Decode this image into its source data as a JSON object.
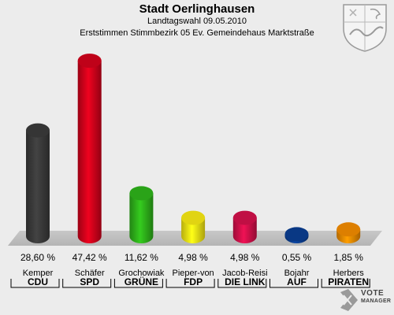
{
  "header": {
    "title": "Stadt Oerlinghausen",
    "subtitle": "Landtagswahl 09.05.2010",
    "subtitle2": "Erststimmen Stimmbezirk 05 Ev. Gemeindehaus Marktstraße"
  },
  "logo": {
    "line1": "VOTE",
    "line2": "MANAGER"
  },
  "chart_data": {
    "type": "bar",
    "ylim": [
      0,
      50
    ],
    "grid": false,
    "categories": [
      "Kemper",
      "Schäfer",
      "Grochowiak",
      "Pieper-von",
      "Jacob-Reisi",
      "Bojahr",
      "Herbers"
    ],
    "parties": [
      "CDU",
      "SPD",
      "GRÜNE",
      "FDP",
      "DIE LINK",
      "AUF",
      "PIRATEN"
    ],
    "values": [
      28.6,
      47.42,
      11.62,
      4.98,
      4.98,
      0.55,
      1.85
    ],
    "value_labels": [
      "28,60 %",
      "47,42 %",
      "11,62 %",
      "4,98 %",
      "4,98 %",
      "0,55 %",
      "1,85 %"
    ],
    "colors": [
      "#3a3a3a",
      "#d0021b",
      "#2eb11a",
      "#f5e614",
      "#d1104a",
      "#0a3d8f",
      "#f08a00"
    ]
  }
}
